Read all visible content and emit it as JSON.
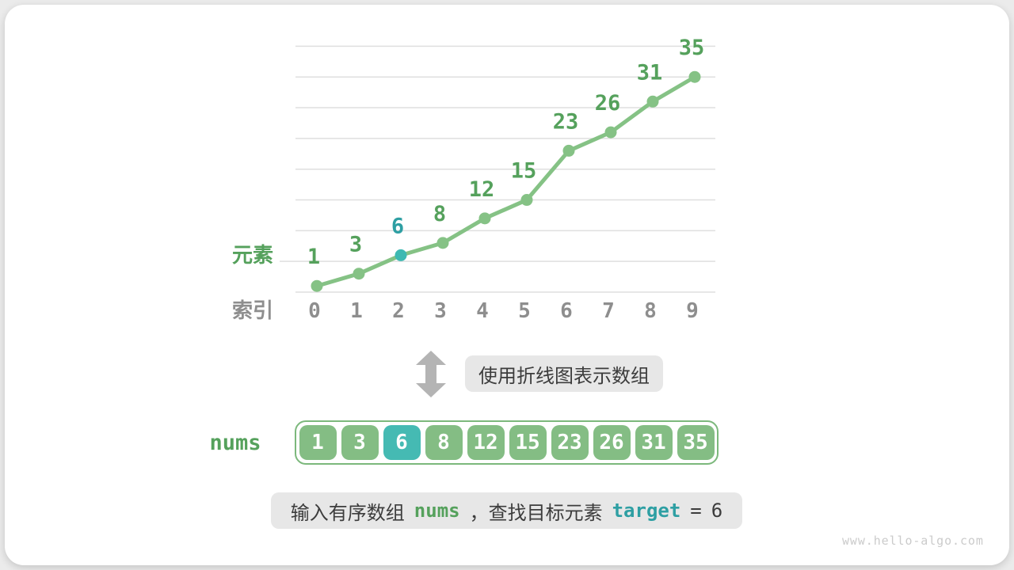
{
  "chart_data": {
    "type": "line",
    "xlabel": "索引",
    "ylabel": "元素",
    "x": [
      0,
      1,
      2,
      3,
      4,
      5,
      6,
      7,
      8,
      9
    ],
    "series": [
      {
        "name": "nums",
        "values": [
          1,
          3,
          6,
          8,
          12,
          15,
          23,
          26,
          31,
          35
        ]
      }
    ],
    "highlight_index": 2,
    "ylim": [
      0,
      40
    ],
    "grid_step": 5,
    "grid": true,
    "legend_position": "none"
  },
  "transform_note": {
    "label": "使用折线图表示数组",
    "arrow_icon": "double-headed-vertical-arrow"
  },
  "array_panel": {
    "label": "nums",
    "values": [
      "1",
      "3",
      "6",
      "8",
      "12",
      "15",
      "23",
      "26",
      "31",
      "35"
    ],
    "highlight_index": 2
  },
  "caption": {
    "text_before": "输入有序数组",
    "var_nums": "nums",
    "text_middle": "，查找目标元素",
    "var_target": "target",
    "equals_sign": "=",
    "target_value": "6"
  },
  "watermark": "www.hello-algo.com",
  "colors": {
    "green_line": "#85c285",
    "green_text": "#55a15c",
    "teal_dot": "#3db9b2",
    "teal_text": "#2e9fa3",
    "cell_green": "#84bd84",
    "cell_teal": "#45bab3",
    "index_gray": "#8e8e8e",
    "gridline": "#dfdfdf",
    "box_bg": "#e7e7e7",
    "arrow_gray": "#b4b4b4",
    "caption_text": "#3c3c3c"
  }
}
